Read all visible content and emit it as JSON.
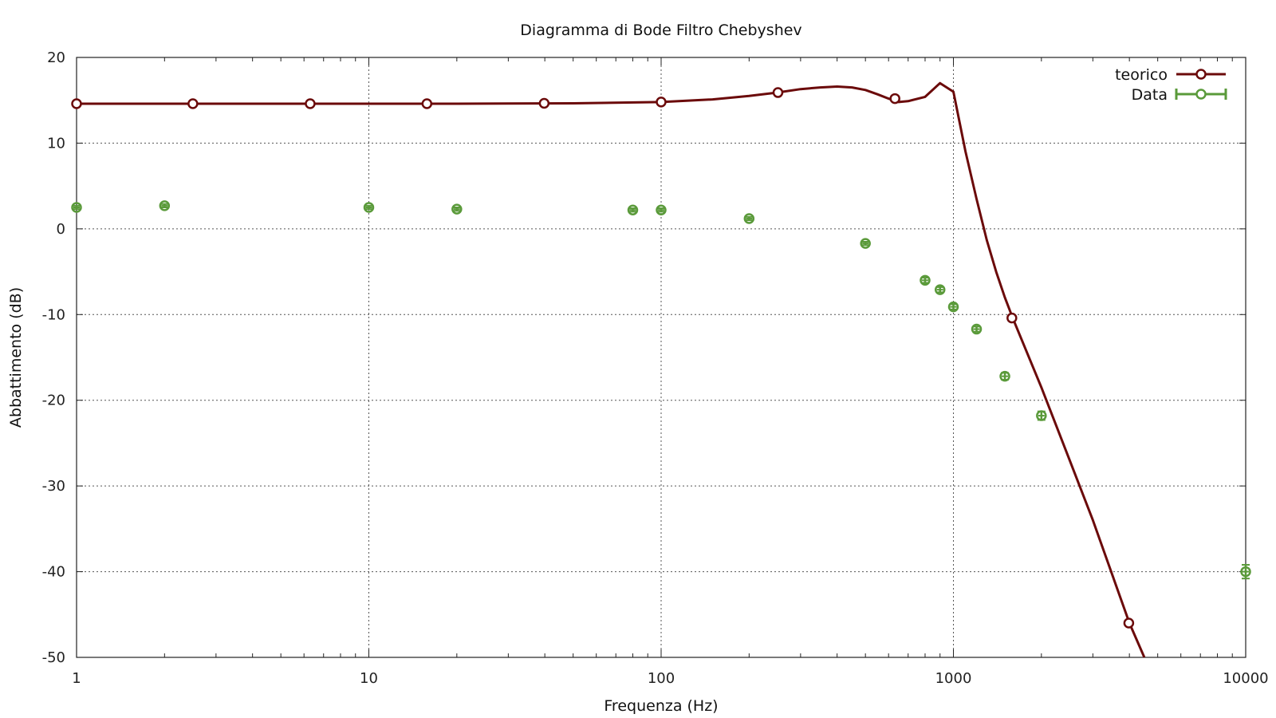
{
  "chart_data": {
    "type": "line",
    "title": "Diagramma di Bode Filtro Chebyshev",
    "xlabel": "Frequenza (Hz)",
    "ylabel": "Abbattimento (dB)",
    "x_scale": "log",
    "xlim": [
      1,
      10000
    ],
    "ylim": [
      -50,
      20
    ],
    "x_ticks": [
      1,
      10,
      100,
      1000,
      10000
    ],
    "x_tick_labels": [
      "1",
      "10",
      "100",
      "1000",
      "10000"
    ],
    "y_ticks": [
      20,
      10,
      0,
      -10,
      -20,
      -30,
      -40,
      -50
    ],
    "y_tick_labels": [
      "20",
      "10",
      "0",
      "-10",
      "-20",
      "-30",
      "-40",
      "-50"
    ],
    "grid": true,
    "legend_position": "top-right",
    "series": [
      {
        "name": "teorico",
        "kind": "line-with-markers",
        "color": "#6b0a0a",
        "x": [
          1,
          2,
          5,
          10,
          20,
          50,
          100,
          150,
          200,
          250,
          300,
          350,
          400,
          450,
          500,
          550,
          600,
          650,
          700,
          800,
          900,
          1000,
          1100,
          1200,
          1300,
          1400,
          1500,
          1600,
          2000,
          2500,
          3000,
          4000,
          4500
        ],
        "y": [
          14.6,
          14.6,
          14.6,
          14.6,
          14.6,
          14.65,
          14.8,
          15.1,
          15.5,
          15.9,
          16.3,
          16.5,
          16.6,
          16.5,
          16.2,
          15.7,
          15.2,
          14.8,
          14.9,
          15.4,
          17.0,
          16.0,
          9.0,
          3.5,
          -1.3,
          -5.0,
          -8.0,
          -10.5,
          -18.5,
          -27.0,
          -34.0,
          -46.0,
          -50.0
        ],
        "markers_x": [
          1,
          2.5,
          6.3,
          15.8,
          39.8,
          100,
          251,
          631,
          1585,
          3981
        ],
        "markers_y": [
          14.6,
          14.6,
          14.6,
          14.6,
          14.65,
          14.8,
          15.9,
          15.2,
          -10.4,
          -46.0
        ]
      },
      {
        "name": "Data",
        "kind": "points-errorbars",
        "color": "#5a9a3a",
        "x": [
          1,
          2,
          10,
          20,
          80,
          100,
          200,
          500,
          800,
          900,
          1000,
          1200,
          1500,
          2000,
          10000
        ],
        "y": [
          2.5,
          2.7,
          2.5,
          2.3,
          2.2,
          2.2,
          1.2,
          -1.7,
          -6.0,
          -7.1,
          -9.1,
          -11.7,
          -17.2,
          -21.8,
          -40.0
        ],
        "yerr": [
          0.2,
          0.2,
          0.2,
          0.2,
          0.2,
          0.2,
          0.2,
          0.2,
          0.3,
          0.3,
          0.3,
          0.3,
          0.4,
          0.5,
          0.8
        ]
      }
    ]
  }
}
